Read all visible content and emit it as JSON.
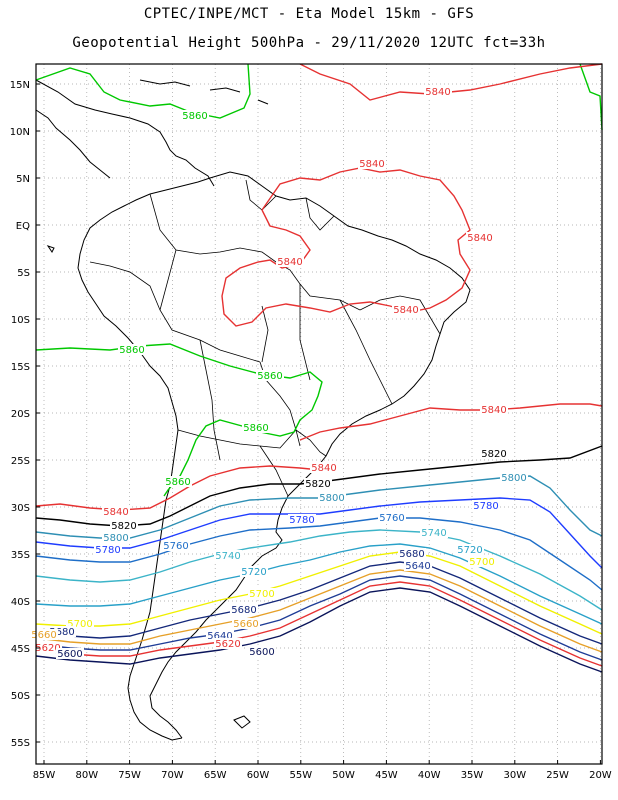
{
  "title_line1": "CPTEC/INPE/MCT  -  Eta Model 15km  -  GFS",
  "title_line2": "Geopotential Height 500hPa  -  29/11/2020 12UTC fct=33h",
  "lat_ticks": [
    "15N",
    "10N",
    "5N",
    "EQ",
    "5S",
    "10S",
    "15S",
    "20S",
    "25S",
    "30S",
    "35S",
    "40S",
    "45S",
    "50S",
    "55S"
  ],
  "lon_ticks": [
    "85W",
    "80W",
    "75W",
    "70W",
    "65W",
    "60W",
    "55W",
    "50W",
    "45W",
    "40W",
    "35W",
    "30W",
    "25W",
    "20W"
  ],
  "contour_labels": {
    "c5860": "5860",
    "c5840": "5840",
    "c5820": "5820",
    "c5800": "5800",
    "c5780": "5780",
    "c5760": "5760",
    "c5740": "5740",
    "c5720": "5720",
    "c5700": "5700",
    "c5680": "5680",
    "c5660": "5660",
    "c5640": "5640",
    "c5620": "5620",
    "c5600": "5600"
  },
  "colors": {
    "c5860": "#00c800",
    "c5840": "#e63232",
    "c5820": "#000000",
    "c5800": "#2e8fb4",
    "c5780": "#1e3cff",
    "c5760": "#1e6ec8",
    "c5740": "#3cb4c8",
    "c5720": "#28a0c8",
    "c5700": "#f0f000",
    "c5680": "#14287a",
    "c5660": "#e6a028",
    "c5640": "#1e3c96",
    "c5620": "#e63232",
    "c5600": "#0a145a",
    "land": "#000000",
    "grid": "#a0a0a0"
  }
}
